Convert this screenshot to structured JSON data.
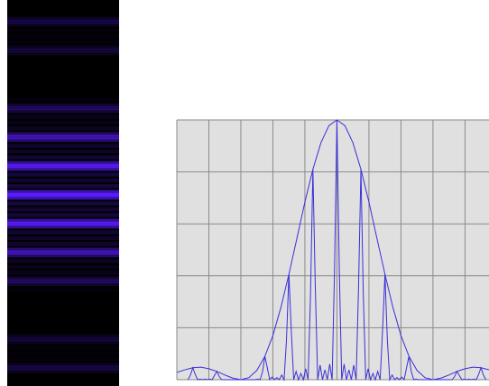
{
  "chart_data": {
    "type": "line",
    "xlim": [
      -5,
      4.75
    ],
    "ylim": [
      0,
      5
    ],
    "xticks": [
      -5,
      -4,
      -3,
      -2,
      -1,
      0,
      1,
      2,
      3,
      4
    ],
    "yticks": [
      0,
      1,
      2,
      3,
      4,
      5
    ],
    "grid": true,
    "series": [
      {
        "color": "#3a2fd6",
        "x": [
          -4.65,
          -4.575,
          -4.5,
          -4.425,
          -4.35,
          -4.275,
          -4.2,
          -4.125,
          -4.05,
          -3.975,
          -3.9,
          -3.825,
          -3.75,
          -3.675,
          -3.6,
          -3.525,
          -3.45,
          -3.375,
          -3.3,
          -3.225,
          -3.15,
          -3.075,
          -3,
          -2.925,
          -2.85,
          -2.775,
          -2.7,
          -2.625,
          -2.55,
          -2.475,
          -2.4,
          -2.325,
          -2.25,
          -2.175,
          -2.1,
          -2.025,
          -1.95,
          -1.875,
          -1.8,
          -1.725,
          -1.65,
          -1.575,
          -1.5,
          -1.425,
          -1.35,
          -1.275,
          -1.2,
          -1.125,
          -1.05,
          -0.975,
          -0.9,
          -0.825,
          -0.75,
          -0.675,
          -0.6,
          -0.525,
          -0.45,
          -0.375,
          -0.3,
          -0.225,
          -0.15,
          -0.075,
          0,
          0.075,
          0.15,
          0.225,
          0.3,
          0.375,
          0.45,
          0.525,
          0.6,
          0.675,
          0.75,
          0.825,
          0.9,
          0.975,
          1.05,
          1.125,
          1.2,
          1.275,
          1.35,
          1.425,
          1.5,
          1.575,
          1.65,
          1.725,
          1.8,
          1.875,
          1.95,
          2.025,
          2.1,
          2.175,
          2.25,
          2.325,
          2.4,
          2.475,
          2.55,
          2.625,
          2.7,
          2.775,
          2.85,
          2.925,
          3,
          3.075,
          3.15,
          3.225,
          3.3,
          3.375,
          3.45,
          3.525,
          3.6,
          3.675,
          3.75,
          3.825,
          3.9,
          3.975,
          4.05,
          4.125,
          4.2,
          4.275,
          4.35,
          4.425,
          4.5,
          4.575,
          4.65
        ],
        "values": [
          0,
          0.09,
          0.23,
          0.1,
          0,
          0.01,
          0,
          0.01,
          0,
          0.01,
          0,
          0.08,
          0.16,
          0.06,
          0,
          0,
          0,
          0,
          0,
          0,
          0,
          0,
          0,
          0,
          0,
          0,
          0,
          0,
          0,
          0.01,
          0,
          0.15,
          0.45,
          0.23,
          0,
          0.05,
          0,
          0.04,
          0,
          0.09,
          0,
          0.77,
          2.03,
          0.94,
          0,
          0.16,
          0,
          0.12,
          0,
          0.21,
          0,
          1.62,
          4.05,
          1.77,
          0,
          0.28,
          0,
          0.19,
          0,
          0.3,
          0,
          2.09,
          5,
          2.09,
          0,
          0.3,
          0,
          0.19,
          0,
          0.28,
          0,
          1.77,
          4.05,
          1.62,
          0,
          0.21,
          0,
          0.12,
          0,
          0.16,
          0,
          0.94,
          2.03,
          0.77,
          0,
          0.09,
          0,
          0.04,
          0,
          0.05,
          0,
          0.23,
          0.45,
          0.15,
          0,
          0.01,
          0,
          0,
          0,
          0,
          0,
          0,
          0,
          0,
          0,
          0,
          0,
          0,
          0,
          0,
          0,
          0.06,
          0.16,
          0.08,
          0,
          0.01,
          0,
          0.01,
          0,
          0.01,
          0,
          0.1,
          0.23,
          0.09,
          0
        ]
      },
      {
        "color": "#3a2fd6",
        "x": [
          -5,
          -4.75,
          -4.5,
          -4.25,
          -4,
          -3.75,
          -3.5,
          -3.25,
          -3,
          -2.75,
          -2.5,
          -2.25,
          -2,
          -1.75,
          -1.5,
          -1.25,
          -1,
          -0.75,
          -0.5,
          -0.25,
          0,
          0.25,
          0.5,
          0.75,
          1,
          1.25,
          1.5,
          1.75,
          2,
          2.25,
          2.5,
          2.75,
          3,
          3.25,
          3.5,
          3.75,
          4,
          4.25,
          4.5,
          4.75
        ],
        "values": [
          0.14,
          0.19,
          0.23,
          0.24,
          0.21,
          0.16,
          0.09,
          0.03,
          0,
          0.04,
          0.18,
          0.45,
          0.85,
          1.39,
          2.03,
          2.72,
          3.42,
          4.05,
          4.56,
          4.89,
          5,
          4.89,
          4.56,
          4.05,
          3.42,
          2.72,
          2.03,
          1.39,
          0.85,
          0.45,
          0.18,
          0.04,
          0,
          0.03,
          0.09,
          0.16,
          0.21,
          0.24,
          0.23,
          0.19
        ]
      }
    ]
  }
}
